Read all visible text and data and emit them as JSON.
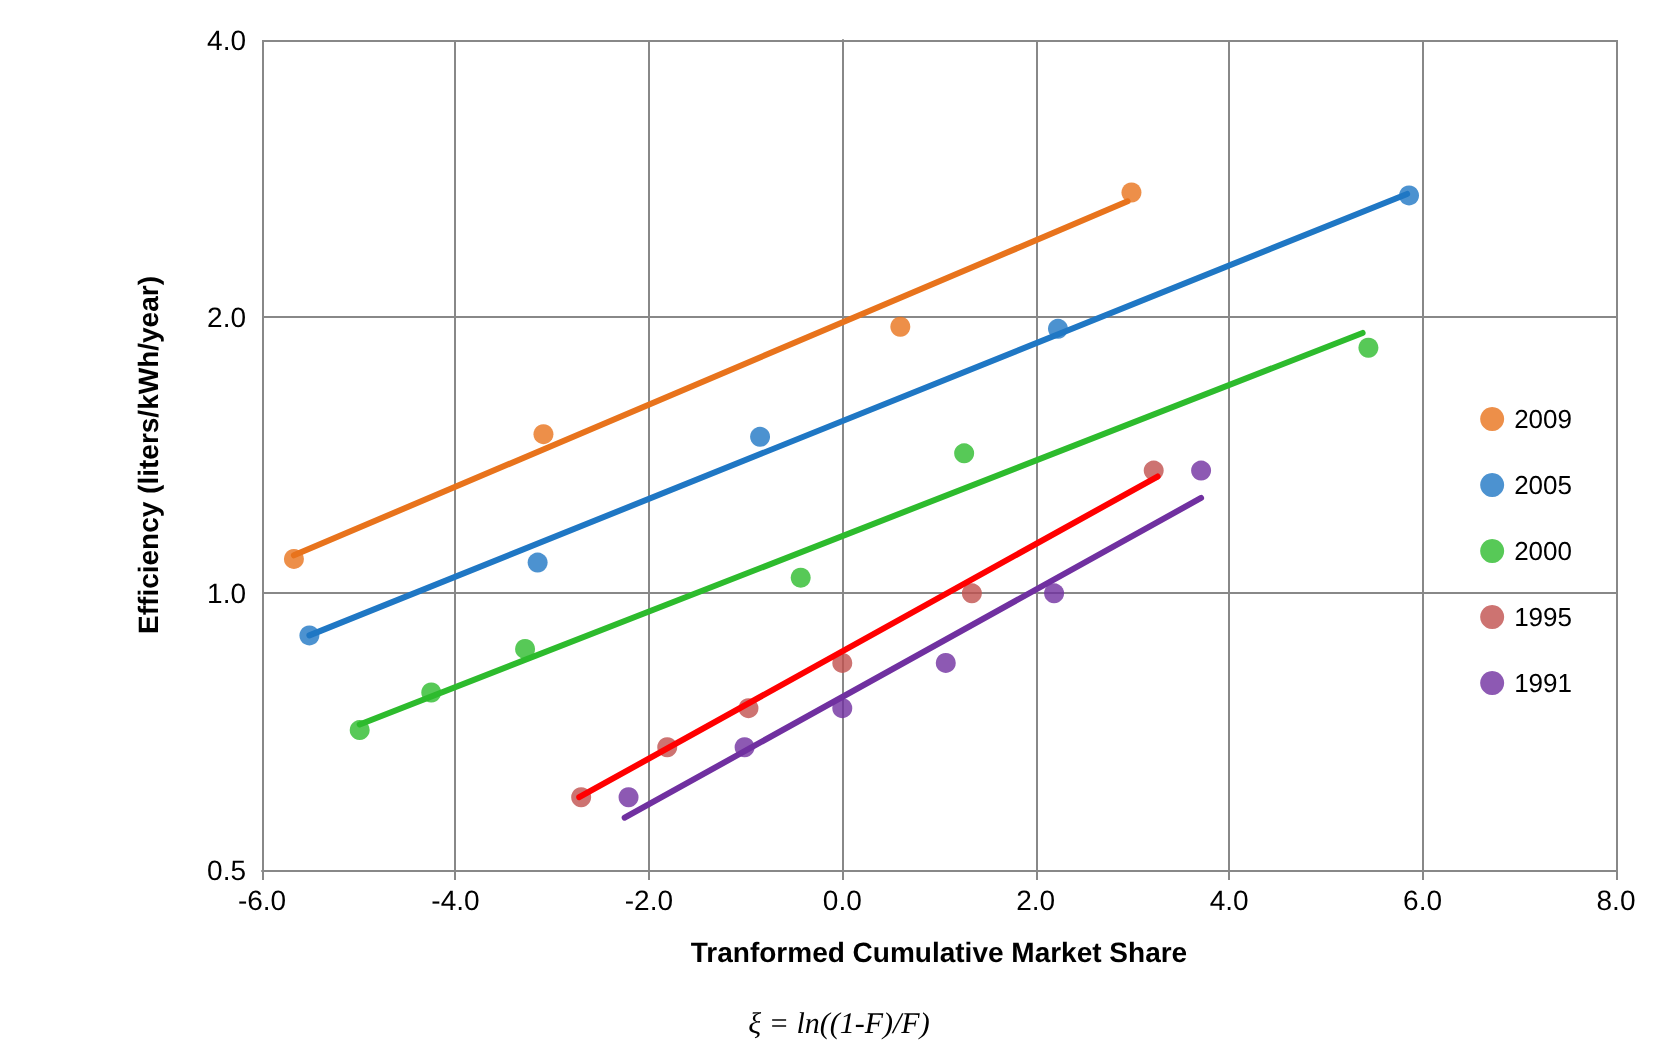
{
  "chart_data": {
    "type": "scatter",
    "xlabel": "Tranformed Cumulative Market Share",
    "ylabel": "Efficiency (liters/kWh/year)",
    "annotations": [
      "ξ = ln((1-F)/F)"
    ],
    "log": "y",
    "grid": true,
    "legend": "right",
    "marker": "circle",
    "xlim": [
      -6,
      8
    ],
    "xticks": [
      {
        "value": -6,
        "label": "-6.0"
      },
      {
        "value": -4,
        "label": "-4.0"
      },
      {
        "value": -2,
        "label": "-2.0"
      },
      {
        "value": 0,
        "label": "0.0"
      },
      {
        "value": 2,
        "label": "2.0"
      },
      {
        "value": 4,
        "label": "4.0"
      },
      {
        "value": 6,
        "label": "6.0"
      },
      {
        "value": 8,
        "label": "8.0"
      }
    ],
    "ylim": [
      0.5,
      4
    ],
    "yticks": [
      {
        "value": 0.5,
        "label": "0.5"
      },
      {
        "value": 1,
        "label": "1.0"
      },
      {
        "value": 2,
        "label": "2.0"
      },
      {
        "value": 4,
        "label": "4.0"
      }
    ],
    "series": [
      {
        "name": "2009",
        "color": "#e8731c",
        "x": [
          -5.67,
          -3.09,
          0.6,
          2.99
        ],
        "values": [
          1.09,
          1.49,
          1.95,
          2.73
        ]
      },
      {
        "name": "2005",
        "color": "#1f77c4",
        "x": [
          -5.51,
          -3.15,
          -0.85,
          2.23,
          5.86
        ],
        "values": [
          0.9,
          1.08,
          1.48,
          1.94,
          2.71
        ]
      },
      {
        "name": "2000",
        "color": "#2dbb2d",
        "x": [
          -4.99,
          -4.25,
          -3.28,
          -0.43,
          1.26,
          5.44
        ],
        "values": [
          0.71,
          0.78,
          0.87,
          1.04,
          1.42,
          1.85
        ]
      },
      {
        "name": "1995",
        "color": "#c0504d",
        "x": [
          -2.7,
          -1.81,
          -0.97,
          0,
          1.34,
          3.22
        ],
        "values": [
          0.6,
          0.68,
          0.75,
          0.84,
          1.0,
          1.36
        ]
      },
      {
        "name": "1991",
        "color": "#7030a0",
        "x": [
          -2.21,
          -1.01,
          0,
          1.07,
          2.19,
          3.71
        ],
        "values": [
          0.6,
          0.68,
          0.75,
          0.84,
          1.0,
          1.36
        ]
      },
      {
        "type": "line",
        "marker": "none",
        "color": "#e8731c",
        "x": [
          -5.67,
          2.95
        ],
        "values": [
          1.1,
          2.67
        ]
      },
      {
        "type": "line",
        "marker": "none",
        "color": "#1f77c4",
        "x": [
          -5.51,
          5.84
        ],
        "values": [
          0.9,
          2.72
        ]
      },
      {
        "type": "line",
        "marker": "none",
        "color": "#2dbb2d",
        "x": [
          -4.99,
          5.38
        ],
        "values": [
          0.72,
          1.92
        ]
      },
      {
        "type": "line",
        "marker": "none",
        "color": "#ff0000",
        "x": [
          -2.72,
          3.26
        ],
        "values": [
          0.6,
          1.34
        ]
      },
      {
        "type": "line",
        "marker": "none",
        "color": "#7030a0",
        "x": [
          -2.25,
          3.71
        ],
        "values": [
          0.57,
          1.27
        ]
      }
    ]
  }
}
